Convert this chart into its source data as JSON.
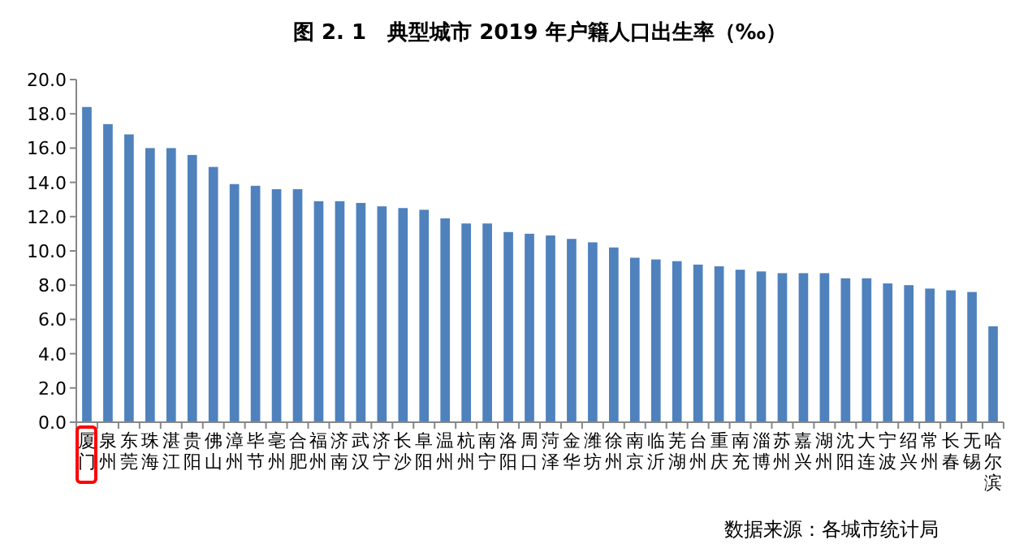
{
  "chart_data": {
    "type": "bar",
    "title": "图 2. 1　典型城市 2019 年户籍人口出生率（‰）",
    "categories": [
      "厦门",
      "泉州",
      "东莞",
      "珠海",
      "湛江",
      "贵阳",
      "佛山",
      "漳州",
      "毕节",
      "亳州",
      "合肥",
      "福州",
      "济南",
      "武汉",
      "济宁",
      "长沙",
      "阜阳",
      "温州",
      "杭州",
      "南宁",
      "洛阳",
      "周口",
      "菏泽",
      "金华",
      "潍坊",
      "徐州",
      "南京",
      "临沂",
      "芜湖",
      "台州",
      "重庆",
      "南充",
      "淄博",
      "苏州",
      "嘉兴",
      "湖州",
      "沈阳",
      "大连",
      "宁波",
      "绍兴",
      "常州",
      "长春",
      "无锡",
      "哈尔滨"
    ],
    "values": [
      18.4,
      17.4,
      16.8,
      16.0,
      16.0,
      15.6,
      14.9,
      13.9,
      13.8,
      13.6,
      13.6,
      12.9,
      12.9,
      12.8,
      12.6,
      12.5,
      12.4,
      11.9,
      11.6,
      11.6,
      11.1,
      11.0,
      10.9,
      10.7,
      10.5,
      10.2,
      9.6,
      9.5,
      9.4,
      9.2,
      9.1,
      8.9,
      8.8,
      8.7,
      8.7,
      8.7,
      8.4,
      8.4,
      8.1,
      8.0,
      7.8,
      7.7,
      7.6,
      5.6
    ],
    "color": "#4f81bd",
    "ylim": [
      0,
      20
    ],
    "yticks": [
      {
        "value": 0,
        "label": "0.0"
      },
      {
        "value": 2,
        "label": "2.0"
      },
      {
        "value": 4,
        "label": "4.0"
      },
      {
        "value": 6,
        "label": "6.0"
      },
      {
        "value": 8,
        "label": "8.0"
      },
      {
        "value": 10,
        "label": "10.0"
      },
      {
        "value": 12,
        "label": "12.0"
      },
      {
        "value": 14,
        "label": "14.0"
      },
      {
        "value": 16,
        "label": "16.0"
      },
      {
        "value": 18,
        "label": "18.0"
      },
      {
        "value": 20,
        "label": "20.0"
      }
    ],
    "annotations": [
      "数据来源：各城市统计局"
    ]
  }
}
